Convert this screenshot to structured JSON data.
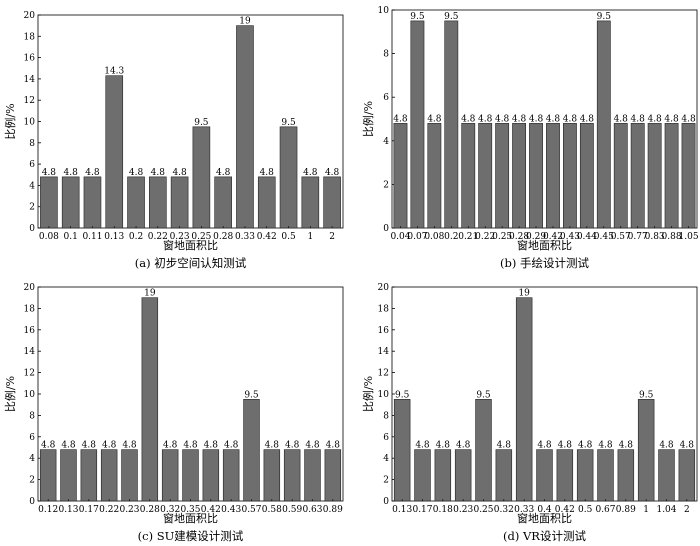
{
  "chart_data": [
    {
      "type": "bar",
      "caption": "(a) 初步空间认知测试",
      "xlabel": "窗地面积比",
      "ylabel": "比例/%",
      "ylim": [
        0,
        20
      ],
      "yticks": [
        0,
        2,
        4,
        6,
        8,
        10,
        12,
        14,
        16,
        18,
        20
      ],
      "categories": [
        "0.08",
        "0.1",
        "0.11",
        "0.13",
        "0.2",
        "0.22",
        "0.23",
        "0.25",
        "0.28",
        "0.33",
        "0.42",
        "0.5",
        "1",
        "2"
      ],
      "values": [
        4.8,
        4.8,
        4.8,
        14.3,
        4.8,
        4.8,
        4.8,
        9.5,
        4.8,
        19,
        4.8,
        9.5,
        4.8,
        4.8
      ],
      "labels": [
        "4.8",
        "4.8",
        "4.8",
        "14.3",
        "4.8",
        "4.8",
        "4.8",
        "9.5",
        "4.8",
        "19",
        "4.8",
        "9.5",
        "4.8",
        "4.8"
      ],
      "grid": false,
      "bar_color": "#6e6e6e"
    },
    {
      "type": "bar",
      "caption": "(b) 手绘设计测试",
      "xlabel": "窗地面积比",
      "ylabel": "比例/%",
      "ylim": [
        0,
        10
      ],
      "yticks": [
        0,
        2,
        4,
        6,
        8,
        10
      ],
      "categories": [
        "0.04",
        "0.07",
        "0.08",
        "0.2",
        "0.21",
        "0.22",
        "0.25",
        "0.28",
        "0.29",
        "0.42",
        "0.43",
        "0.44",
        "0.45",
        "0.57",
        "0.77",
        "0.83",
        "0.88",
        "1.05"
      ],
      "values": [
        4.8,
        9.5,
        4.8,
        9.5,
        4.8,
        4.8,
        4.8,
        4.8,
        4.8,
        4.8,
        4.8,
        4.8,
        9.5,
        4.8,
        4.8,
        4.8,
        4.8,
        4.8
      ],
      "labels": [
        "4.8",
        "9.5",
        "4.8",
        "9.5",
        "4.8",
        "4.8",
        "4.8",
        "4.8",
        "4.8",
        "4.8",
        "4.8",
        "4.8",
        "9.5",
        "4.8",
        "4.8",
        "4.8",
        "4.8",
        "4.8"
      ],
      "grid": false,
      "bar_color": "#6e6e6e"
    },
    {
      "type": "bar",
      "caption": "(c) SU建模设计测试",
      "xlabel": "窗地面积比",
      "ylabel": "比例/%",
      "ylim": [
        0,
        20
      ],
      "yticks": [
        0,
        2,
        4,
        6,
        8,
        10,
        12,
        14,
        16,
        18,
        20
      ],
      "categories": [
        "0.12",
        "0.13",
        "0.17",
        "0.22",
        "0.23",
        "0.28",
        "0.32",
        "0.35",
        "0.42",
        "0.43",
        "0.57",
        "0.58",
        "0.59",
        "0.63",
        "0.89"
      ],
      "values": [
        4.8,
        4.8,
        4.8,
        4.8,
        4.8,
        19,
        4.8,
        4.8,
        4.8,
        4.8,
        9.5,
        4.8,
        4.8,
        4.8,
        4.8
      ],
      "labels": [
        "4.8",
        "4.8",
        "4.8",
        "4.8",
        "4.8",
        "19",
        "4.8",
        "4.8",
        "4.8",
        "4.8",
        "9.5",
        "4.8",
        "4.8",
        "4.8",
        "4.8"
      ],
      "grid": false,
      "bar_color": "#6e6e6e"
    },
    {
      "type": "bar",
      "caption": "(d) VR设计测试",
      "xlabel": "窗地面积比",
      "ylabel": "比例/%",
      "ylim": [
        0,
        20
      ],
      "yticks": [
        0,
        2,
        4,
        6,
        8,
        10,
        12,
        14,
        16,
        18,
        20
      ],
      "categories": [
        "0.13",
        "0.17",
        "0.18",
        "0.23",
        "0.25",
        "0.32",
        "0.33",
        "0.4",
        "0.42",
        "0.5",
        "0.67",
        "0.89",
        "1",
        "1.04",
        "2"
      ],
      "values": [
        9.5,
        4.8,
        4.8,
        4.8,
        9.5,
        4.8,
        19,
        4.8,
        4.8,
        4.8,
        4.8,
        4.8,
        9.5,
        4.8,
        4.8
      ],
      "labels": [
        "9.5",
        "4.8",
        "4.8",
        "4.8",
        "9.5",
        "4.8",
        "19",
        "4.8",
        "4.8",
        "4.8",
        "4.8",
        "4.8",
        "9.5",
        "4.8",
        "4.8"
      ],
      "grid": false,
      "bar_color": "#6e6e6e"
    }
  ]
}
